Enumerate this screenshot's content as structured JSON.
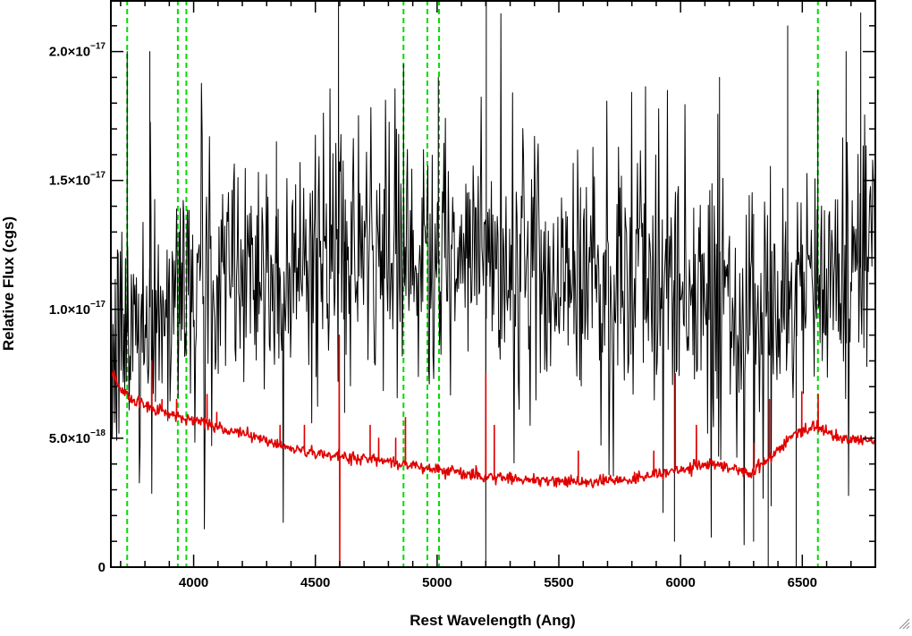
{
  "chart_data": {
    "type": "line",
    "title": "",
    "xlabel": "Rest Wavelength (Ang)",
    "ylabel": "Relative Flux (cgs)",
    "xlim": [
      3660,
      6800
    ],
    "ylim": [
      0,
      2.2e-17
    ],
    "x_ticks": [
      {
        "value": 4000,
        "label": "4000"
      },
      {
        "value": 4500,
        "label": "4500"
      },
      {
        "value": 5000,
        "label": "5000"
      },
      {
        "value": 5500,
        "label": "5500"
      },
      {
        "value": 6000,
        "label": "6000"
      },
      {
        "value": 6500,
        "label": "6500"
      }
    ],
    "y_ticks": [
      {
        "value": 0,
        "mantissa": "0",
        "exponent": ""
      },
      {
        "value": 5e-18,
        "mantissa": "5.0×10",
        "exponent": "−18"
      },
      {
        "value": 1e-17,
        "mantissa": "1.0×10",
        "exponent": "−17"
      },
      {
        "value": 1.5e-17,
        "mantissa": "1.5×10",
        "exponent": "−17"
      },
      {
        "value": 2e-17,
        "mantissa": "2.0×10",
        "exponent": "−17"
      }
    ],
    "grid": false,
    "legend": "none",
    "series": [
      {
        "role": "flux",
        "color": "#000000",
        "style": "noisy",
        "sample_step_ang": 3,
        "noise_sigma": 2.4e-18,
        "continuum": [
          [
            3660,
            7.5e-18
          ],
          [
            3700,
            8.8e-18
          ],
          [
            3800,
            1e-17
          ],
          [
            3900,
            1.05e-17
          ],
          [
            4000,
            1.1e-17
          ],
          [
            4200,
            1.18e-17
          ],
          [
            4500,
            1.18e-17
          ],
          [
            4800,
            1.2e-17
          ],
          [
            5000,
            1.18e-17
          ],
          [
            5200,
            1.16e-17
          ],
          [
            5500,
            1.15e-17
          ],
          [
            5800,
            1.12e-17
          ],
          [
            6000,
            1.08e-17
          ],
          [
            6200,
            1.02e-17
          ],
          [
            6300,
            8.5e-18
          ],
          [
            6400,
            1e-17
          ],
          [
            6600,
            1.12e-17
          ],
          [
            6800,
            1.18e-17
          ]
        ],
        "features": [
          {
            "x": 3727,
            "y": 2e-17
          },
          {
            "x": 3820,
            "y": 2e-17
          },
          {
            "x": 3940,
            "y": 1.3e-17
          },
          {
            "x": 4340,
            "y": 1.65e-17
          },
          {
            "x": 4595,
            "y": 2.2e-17
          },
          {
            "x": 4620,
            "y": 6e-18
          },
          {
            "x": 4862,
            "y": 1.95e-17
          },
          {
            "x": 5005,
            "y": 1.9e-17
          },
          {
            "x": 5200,
            "y": 0.0
          },
          {
            "x": 5202,
            "y": 2.2e-17
          },
          {
            "x": 5975,
            "y": 1e-18
          },
          {
            "x": 6160,
            "y": 1.9e-17
          },
          {
            "x": 6300,
            "y": 1e-18
          },
          {
            "x": 6360,
            "y": 0.0
          },
          {
            "x": 6440,
            "y": 2.1e-17
          },
          {
            "x": 6475,
            "y": 0.0
          },
          {
            "x": 6564,
            "y": 1.85e-17
          },
          {
            "x": 6680,
            "y": 2e-17
          },
          {
            "x": 6740,
            "y": 2.15e-17
          }
        ]
      },
      {
        "role": "error",
        "color": "#e00000",
        "style": "smooth",
        "sample_step_ang": 3,
        "noise_sigma": 1.2e-19,
        "continuum": [
          [
            3660,
            7.6e-18
          ],
          [
            3700,
            6.9e-18
          ],
          [
            3760,
            6.4e-18
          ],
          [
            3850,
            6.1e-18
          ],
          [
            4000,
            5.7e-18
          ],
          [
            4200,
            5.2e-18
          ],
          [
            4400,
            4.6e-18
          ],
          [
            4600,
            4.3e-18
          ],
          [
            4800,
            4.1e-18
          ],
          [
            5000,
            3.8e-18
          ],
          [
            5200,
            3.5e-18
          ],
          [
            5400,
            3.4e-18
          ],
          [
            5600,
            3.3e-18
          ],
          [
            5800,
            3.4e-18
          ],
          [
            6000,
            3.8e-18
          ],
          [
            6150,
            4e-18
          ],
          [
            6280,
            3.6e-18
          ],
          [
            6360,
            4.2e-18
          ],
          [
            6450,
            5e-18
          ],
          [
            6550,
            5.5e-18
          ],
          [
            6650,
            5e-18
          ],
          [
            6800,
            4.9e-18
          ]
        ],
        "features": [
          {
            "x": 3828,
            "y": 8e-18
          },
          {
            "x": 3870,
            "y": 6.5e-18
          },
          {
            "x": 3930,
            "y": 6.5e-18
          },
          {
            "x": 4055,
            "y": 6.7e-18
          },
          {
            "x": 4095,
            "y": 6e-18
          },
          {
            "x": 4355,
            "y": 5.5e-18
          },
          {
            "x": 4455,
            "y": 5.5e-18
          },
          {
            "x": 4598,
            "y": 9e-18
          },
          {
            "x": 4600,
            "y": 0.0
          },
          {
            "x": 4725,
            "y": 5.5e-18
          },
          {
            "x": 4760,
            "y": 5e-18
          },
          {
            "x": 4830,
            "y": 5e-18
          },
          {
            "x": 4870,
            "y": 5.8e-18
          },
          {
            "x": 5200,
            "y": 7.5e-18
          },
          {
            "x": 5235,
            "y": 5.5e-18
          },
          {
            "x": 5580,
            "y": 4.5e-18
          },
          {
            "x": 5890,
            "y": 4.5e-18
          },
          {
            "x": 5978,
            "y": 7.5e-18
          },
          {
            "x": 6065,
            "y": 5.5e-18
          },
          {
            "x": 6300,
            "y": 4.8e-18
          },
          {
            "x": 6365,
            "y": 6.5e-18
          },
          {
            "x": 6498,
            "y": 6.8e-18
          },
          {
            "x": 6565,
            "y": 6.7e-18
          }
        ]
      }
    ],
    "reference_lines": {
      "style": "dashed",
      "color": "#00dd00",
      "x": [
        3727,
        3935,
        3970,
        4862,
        4960,
        5008,
        6564
      ]
    },
    "axis_line_color": "#000000"
  }
}
